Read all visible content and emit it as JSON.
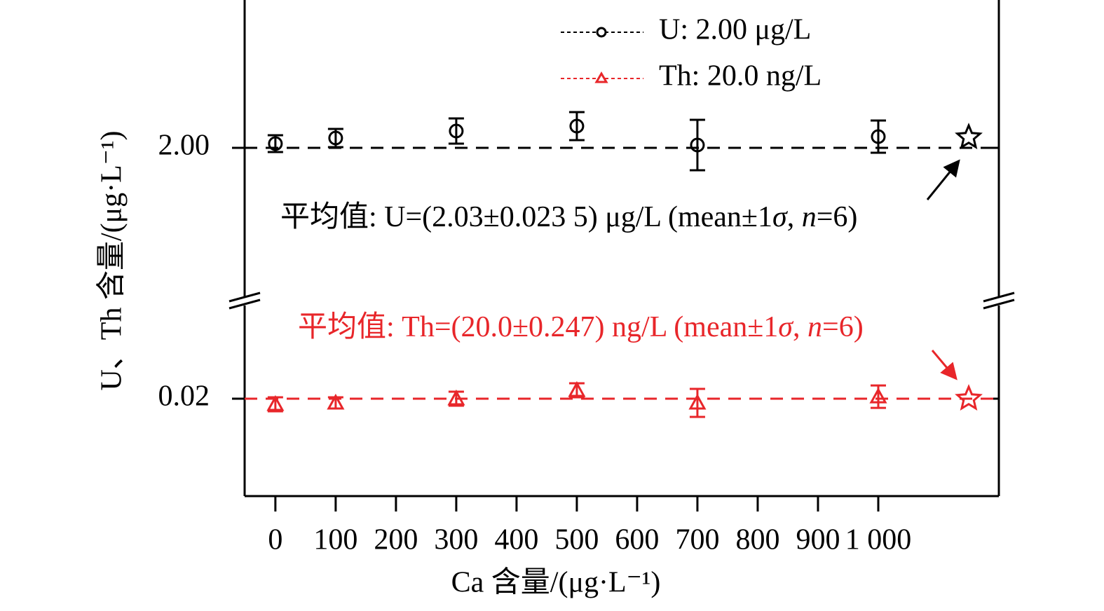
{
  "chart_data": {
    "type": "scatter",
    "x_label": "Ca 含量/(μg·L⁻¹)",
    "y_label": "U、Th 含量/(μg·L⁻¹)",
    "xlim": [
      -51,
      1200
    ],
    "xticks": [
      0,
      100,
      200,
      300,
      400,
      500,
      600,
      700,
      800,
      900,
      {
        "value": 1000,
        "label": "1 000"
      }
    ],
    "ylim": [
      0.01513,
      0.0248
    ],
    "yticks": [
      {
        "value": 0.02,
        "label": "0.02"
      }
    ],
    "y2lim": [
      1.566,
      2.422
    ],
    "y2ticks": [
      {
        "value": 2,
        "label": "2.00"
      }
    ],
    "broken_axis": true,
    "series": [
      {
        "name": "U: 2.00 μg/L",
        "color": "#000000",
        "marker": "circle",
        "axis": "y2",
        "reference": 2,
        "x": [
          0,
          100,
          300,
          500,
          700,
          1000
        ],
        "values": [
          2.012,
          2.028,
          2.048,
          2.062,
          2.008,
          2.032
        ],
        "errors": [
          0.024,
          0.026,
          0.036,
          0.04,
          0.072,
          0.046
        ],
        "mean": {
          "x": 1150,
          "value": 2.03
        },
        "annotation": [
          "平均值: U=(2.03±0.023 5) μg/L (mean±1",
          "σ",
          ", ",
          "n",
          "=6)"
        ]
      },
      {
        "name": "Th: 20.0 ng/L",
        "color": "#e8262a",
        "marker": "triangle",
        "reference": 0.02,
        "x": [
          0,
          100,
          300,
          500,
          700,
          1000
        ],
        "values": [
          0.01972,
          0.01979,
          0.02,
          0.02042,
          0.01979,
          0.0201
        ],
        "errors": [
          0.00035,
          0.00028,
          0.00035,
          0.00035,
          0.0007,
          0.00056
        ],
        "mean": {
          "x": 1150,
          "value": 0.02
        },
        "annotation": [
          "平均值: Th=(20.0±0.247) ng/L (mean±1",
          "σ",
          ", ",
          "n",
          "=6)"
        ]
      }
    ]
  }
}
